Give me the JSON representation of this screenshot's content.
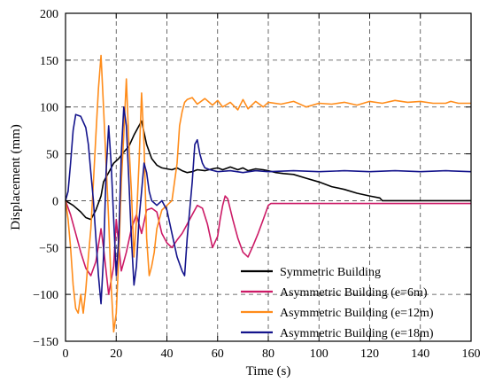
{
  "chart_data": {
    "type": "line",
    "title": "",
    "xlabel": "Time (s)",
    "ylabel": "Displacement (mm)",
    "xlim": [
      0,
      160
    ],
    "ylim": [
      -150,
      200
    ],
    "xticks": [
      "0",
      "20",
      "40",
      "60",
      "80",
      "100",
      "120",
      "140",
      "160"
    ],
    "yticks": [
      "-150",
      "-100",
      "-50",
      "0",
      "50",
      "100",
      "150",
      "200"
    ],
    "grid": true,
    "grid_style": "dashed",
    "legend_position": "lower-right",
    "series": [
      {
        "name": "Symmetric Building",
        "color": "#000000",
        "points": [
          [
            0,
            0
          ],
          [
            3,
            -5
          ],
          [
            6,
            -12
          ],
          [
            8,
            -18
          ],
          [
            10,
            -20
          ],
          [
            12,
            -10
          ],
          [
            14,
            5
          ],
          [
            15,
            20
          ],
          [
            17,
            30
          ],
          [
            19,
            40
          ],
          [
            21,
            45
          ],
          [
            23,
            52
          ],
          [
            25,
            58
          ],
          [
            27,
            70
          ],
          [
            29,
            80
          ],
          [
            30,
            85
          ],
          [
            32,
            60
          ],
          [
            34,
            45
          ],
          [
            36,
            38
          ],
          [
            38,
            35
          ],
          [
            40,
            34
          ],
          [
            42,
            33
          ],
          [
            44,
            35
          ],
          [
            46,
            32
          ],
          [
            48,
            30
          ],
          [
            50,
            31
          ],
          [
            52,
            33
          ],
          [
            55,
            32
          ],
          [
            58,
            34
          ],
          [
            60,
            35
          ],
          [
            62,
            33
          ],
          [
            65,
            36
          ],
          [
            68,
            33
          ],
          [
            70,
            35
          ],
          [
            72,
            32
          ],
          [
            75,
            34
          ],
          [
            78,
            33
          ],
          [
            80,
            32
          ],
          [
            83,
            30
          ],
          [
            86,
            29
          ],
          [
            90,
            28
          ],
          [
            95,
            24
          ],
          [
            100,
            20
          ],
          [
            105,
            15
          ],
          [
            110,
            12
          ],
          [
            115,
            8
          ],
          [
            120,
            5
          ],
          [
            124,
            3
          ],
          [
            125,
            0
          ],
          [
            130,
            0
          ],
          [
            140,
            0
          ],
          [
            150,
            0
          ],
          [
            160,
            0
          ]
        ]
      },
      {
        "name": "Asymmetric Building (e=6m)",
        "color": "#cc1a66",
        "points": [
          [
            0,
            0
          ],
          [
            2,
            -15
          ],
          [
            4,
            -35
          ],
          [
            6,
            -55
          ],
          [
            8,
            -72
          ],
          [
            10,
            -80
          ],
          [
            12,
            -65
          ],
          [
            14,
            -30
          ],
          [
            15,
            -50
          ],
          [
            17,
            -100
          ],
          [
            19,
            -70
          ],
          [
            20,
            -20
          ],
          [
            22,
            -75
          ],
          [
            24,
            -55
          ],
          [
            26,
            -30
          ],
          [
            28,
            -15
          ],
          [
            30,
            -35
          ],
          [
            32,
            -10
          ],
          [
            34,
            -8
          ],
          [
            36,
            -12
          ],
          [
            38,
            -35
          ],
          [
            40,
            -45
          ],
          [
            42,
            -50
          ],
          [
            44,
            -42
          ],
          [
            46,
            -35
          ],
          [
            48,
            -25
          ],
          [
            50,
            -15
          ],
          [
            52,
            -5
          ],
          [
            54,
            -8
          ],
          [
            56,
            -25
          ],
          [
            58,
            -50
          ],
          [
            60,
            -38
          ],
          [
            61,
            -20
          ],
          [
            62,
            -5
          ],
          [
            63,
            5
          ],
          [
            64,
            2
          ],
          [
            66,
            -20
          ],
          [
            68,
            -40
          ],
          [
            70,
            -55
          ],
          [
            72,
            -60
          ],
          [
            74,
            -48
          ],
          [
            76,
            -35
          ],
          [
            78,
            -20
          ],
          [
            80,
            -5
          ],
          [
            81,
            -3
          ],
          [
            90,
            -3
          ],
          [
            100,
            -3
          ],
          [
            110,
            -3
          ],
          [
            120,
            -3
          ],
          [
            130,
            -3
          ],
          [
            140,
            -3
          ],
          [
            150,
            -3
          ],
          [
            160,
            -3
          ]
        ]
      },
      {
        "name": "Asymmetric Building (e=12m)",
        "color": "#ff8c1a",
        "points": [
          [
            0,
            0
          ],
          [
            1,
            -20
          ],
          [
            2,
            -50
          ],
          [
            3,
            -90
          ],
          [
            4,
            -115
          ],
          [
            5,
            -120
          ],
          [
            6,
            -100
          ],
          [
            7,
            -120
          ],
          [
            8,
            -95
          ],
          [
            9,
            -60
          ],
          [
            10,
            -30
          ],
          [
            11,
            20
          ],
          [
            12,
            70
          ],
          [
            13,
            120
          ],
          [
            14,
            155
          ],
          [
            15,
            100
          ],
          [
            16,
            40
          ],
          [
            17,
            -20
          ],
          [
            18,
            -90
          ],
          [
            19,
            -140
          ],
          [
            20,
            -120
          ],
          [
            21,
            -60
          ],
          [
            22,
            20
          ],
          [
            23,
            70
          ],
          [
            24,
            130
          ],
          [
            25,
            60
          ],
          [
            26,
            10
          ],
          [
            27,
            -60
          ],
          [
            28,
            -20
          ],
          [
            29,
            40
          ],
          [
            30,
            115
          ],
          [
            31,
            60
          ],
          [
            32,
            -40
          ],
          [
            33,
            -80
          ],
          [
            34,
            -70
          ],
          [
            35,
            -55
          ],
          [
            36,
            -30
          ],
          [
            37,
            -20
          ],
          [
            38,
            -10
          ],
          [
            40,
            -5
          ],
          [
            42,
            0
          ],
          [
            44,
            40
          ],
          [
            45,
            80
          ],
          [
            46,
            95
          ],
          [
            47,
            105
          ],
          [
            48,
            108
          ],
          [
            50,
            110
          ],
          [
            52,
            103
          ],
          [
            55,
            109
          ],
          [
            58,
            102
          ],
          [
            60,
            107
          ],
          [
            62,
            100
          ],
          [
            65,
            105
          ],
          [
            68,
            97
          ],
          [
            70,
            108
          ],
          [
            72,
            98
          ],
          [
            75,
            106
          ],
          [
            78,
            100
          ],
          [
            80,
            105
          ],
          [
            85,
            103
          ],
          [
            90,
            106
          ],
          [
            95,
            100
          ],
          [
            100,
            104
          ],
          [
            105,
            103
          ],
          [
            110,
            105
          ],
          [
            115,
            102
          ],
          [
            120,
            106
          ],
          [
            125,
            104
          ],
          [
            130,
            107
          ],
          [
            135,
            105
          ],
          [
            140,
            106
          ],
          [
            145,
            104
          ],
          [
            150,
            104
          ],
          [
            152,
            106
          ],
          [
            155,
            104
          ],
          [
            158,
            104
          ],
          [
            160,
            104
          ]
        ]
      },
      {
        "name": "Asymmetric Building (e=18m)",
        "color": "#14148c",
        "points": [
          [
            0,
            0
          ],
          [
            1,
            10
          ],
          [
            2,
            40
          ],
          [
            3,
            75
          ],
          [
            4,
            92
          ],
          [
            6,
            90
          ],
          [
            8,
            78
          ],
          [
            9,
            60
          ],
          [
            10,
            30
          ],
          [
            11,
            0
          ],
          [
            12,
            -40
          ],
          [
            13,
            -80
          ],
          [
            14,
            -110
          ],
          [
            15,
            -60
          ],
          [
            16,
            30
          ],
          [
            17,
            80
          ],
          [
            18,
            40
          ],
          [
            19,
            -20
          ],
          [
            20,
            -80
          ],
          [
            21,
            -40
          ],
          [
            22,
            50
          ],
          [
            23,
            100
          ],
          [
            24,
            80
          ],
          [
            25,
            20
          ],
          [
            26,
            -40
          ],
          [
            27,
            -90
          ],
          [
            28,
            -70
          ],
          [
            29,
            -20
          ],
          [
            30,
            10
          ],
          [
            31,
            40
          ],
          [
            32,
            30
          ],
          [
            33,
            10
          ],
          [
            34,
            0
          ],
          [
            36,
            -5
          ],
          [
            38,
            0
          ],
          [
            40,
            -10
          ],
          [
            42,
            -35
          ],
          [
            44,
            -60
          ],
          [
            46,
            -75
          ],
          [
            47,
            -80
          ],
          [
            48,
            -40
          ],
          [
            50,
            20
          ],
          [
            51,
            60
          ],
          [
            52,
            65
          ],
          [
            53,
            50
          ],
          [
            54,
            40
          ],
          [
            55,
            35
          ],
          [
            57,
            33
          ],
          [
            60,
            31
          ],
          [
            65,
            32
          ],
          [
            70,
            30
          ],
          [
            75,
            32
          ],
          [
            80,
            31
          ],
          [
            90,
            32
          ],
          [
            100,
            31
          ],
          [
            110,
            32
          ],
          [
            120,
            31
          ],
          [
            130,
            32
          ],
          [
            140,
            31
          ],
          [
            150,
            32
          ],
          [
            160,
            31
          ]
        ]
      }
    ]
  }
}
